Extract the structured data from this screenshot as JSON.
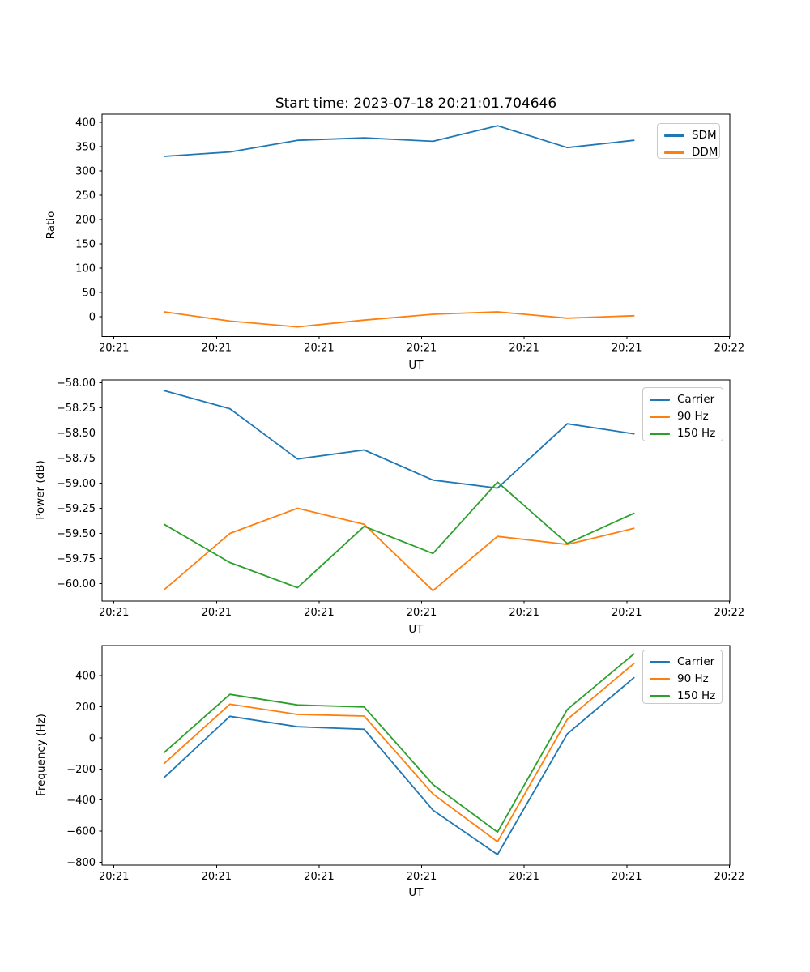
{
  "figure": {
    "title": "Start time: 2023-07-18 20:21:01.704646",
    "background": "#ffffff"
  },
  "colors": {
    "blue": "#1f77b4",
    "orange": "#ff7f0e",
    "green": "#2ca02c",
    "axis": "#000000",
    "legend_border": "#c9c9c9"
  },
  "chart_data": [
    {
      "id": "ratio",
      "type": "line",
      "xlabel": "UT",
      "ylabel": "Ratio",
      "grid": false,
      "legend_position": "upper right",
      "x_seconds_after_20_21": [
        4.9,
        11.3,
        17.9,
        24.4,
        31.1,
        37.4,
        44.2,
        50.7
      ],
      "xlim_seconds": [
        -1.16,
        60.05
      ],
      "ylim": [
        416.7,
        -40.8
      ],
      "xticks": {
        "seconds": [
          0,
          10,
          20,
          30,
          40,
          50,
          60
        ],
        "labels": [
          "20:21",
          "20:21",
          "20:21",
          "20:21",
          "20:21",
          "20:21",
          "20:22"
        ]
      },
      "yticks": {
        "values": [
          400,
          350,
          300,
          250,
          200,
          150,
          100,
          50,
          0
        ],
        "labels": [
          "400",
          "350",
          "300",
          "250",
          "200",
          "150",
          "100",
          "50",
          "0"
        ]
      },
      "series": [
        {
          "name": "SDM",
          "color": "#1f77b4",
          "values": [
            330,
            339,
            363,
            368,
            361,
            393,
            348,
            363
          ]
        },
        {
          "name": "DDM",
          "color": "#ff7f0e",
          "values": [
            10,
            -9,
            -21,
            -7,
            5,
            10,
            -3,
            2
          ]
        }
      ]
    },
    {
      "id": "power",
      "type": "line",
      "xlabel": "UT",
      "ylabel": "Power (dB)",
      "grid": false,
      "legend_position": "upper right",
      "x_seconds_after_20_21": [
        4.9,
        11.3,
        17.9,
        24.4,
        31.1,
        37.4,
        44.2,
        50.7
      ],
      "xlim_seconds": [
        -1.16,
        60.05
      ],
      "ylim": [
        -57.973,
        -60.173
      ],
      "xticks": {
        "seconds": [
          0,
          10,
          20,
          30,
          40,
          50,
          60
        ],
        "labels": [
          "20:21",
          "20:21",
          "20:21",
          "20:21",
          "20:21",
          "20:21",
          "20:22"
        ]
      },
      "yticks": {
        "values": [
          -58.0,
          -58.25,
          -58.5,
          -58.75,
          -59.0,
          -59.25,
          -59.5,
          -59.75,
          -60.0
        ],
        "labels": [
          "−58.00",
          "−58.25",
          "−58.50",
          "−58.75",
          "−59.00",
          "−59.25",
          "−59.50",
          "−59.75",
          "−60.00"
        ]
      },
      "series": [
        {
          "name": "Carrier",
          "color": "#1f77b4",
          "values": [
            -58.08,
            -58.26,
            -58.76,
            -58.67,
            -58.97,
            -59.05,
            -58.41,
            -58.51
          ]
        },
        {
          "name": "90 Hz",
          "color": "#ff7f0e",
          "values": [
            -60.06,
            -59.5,
            -59.25,
            -59.41,
            -60.07,
            -59.53,
            -59.61,
            -59.45
          ]
        },
        {
          "name": "150 Hz",
          "color": "#2ca02c",
          "values": [
            -59.41,
            -59.79,
            -60.04,
            -59.43,
            -59.7,
            -58.99,
            -59.6,
            -59.3
          ]
        }
      ]
    },
    {
      "id": "frequency",
      "type": "line",
      "xlabel": "UT",
      "ylabel": "Frequency (Hz)",
      "grid": false,
      "legend_position": "upper right",
      "x_seconds_after_20_21": [
        4.9,
        11.3,
        17.9,
        24.4,
        31.1,
        37.4,
        44.2,
        50.7
      ],
      "xlim_seconds": [
        -1.16,
        60.05
      ],
      "ylim": [
        592.5,
        -817.7
      ],
      "xticks": {
        "seconds": [
          0,
          10,
          20,
          30,
          40,
          50,
          60
        ],
        "labels": [
          "20:21",
          "20:21",
          "20:21",
          "20:21",
          "20:21",
          "20:21",
          "20:22"
        ]
      },
      "yticks": {
        "values": [
          400,
          200,
          0,
          -200,
          -400,
          -600,
          -800
        ],
        "labels": [
          "400",
          "200",
          "0",
          "−200",
          "−400",
          "−600",
          "−800"
        ]
      },
      "series": [
        {
          "name": "Carrier",
          "color": "#1f77b4",
          "values": [
            -255,
            138,
            71,
            55,
            -465,
            -750,
            25,
            386
          ]
        },
        {
          "name": "90 Hz",
          "color": "#ff7f0e",
          "values": [
            -165,
            216,
            150,
            140,
            -361,
            -668,
            118,
            477
          ]
        },
        {
          "name": "150 Hz",
          "color": "#2ca02c",
          "values": [
            -95,
            279,
            211,
            198,
            -300,
            -606,
            182,
            539
          ]
        }
      ]
    }
  ]
}
